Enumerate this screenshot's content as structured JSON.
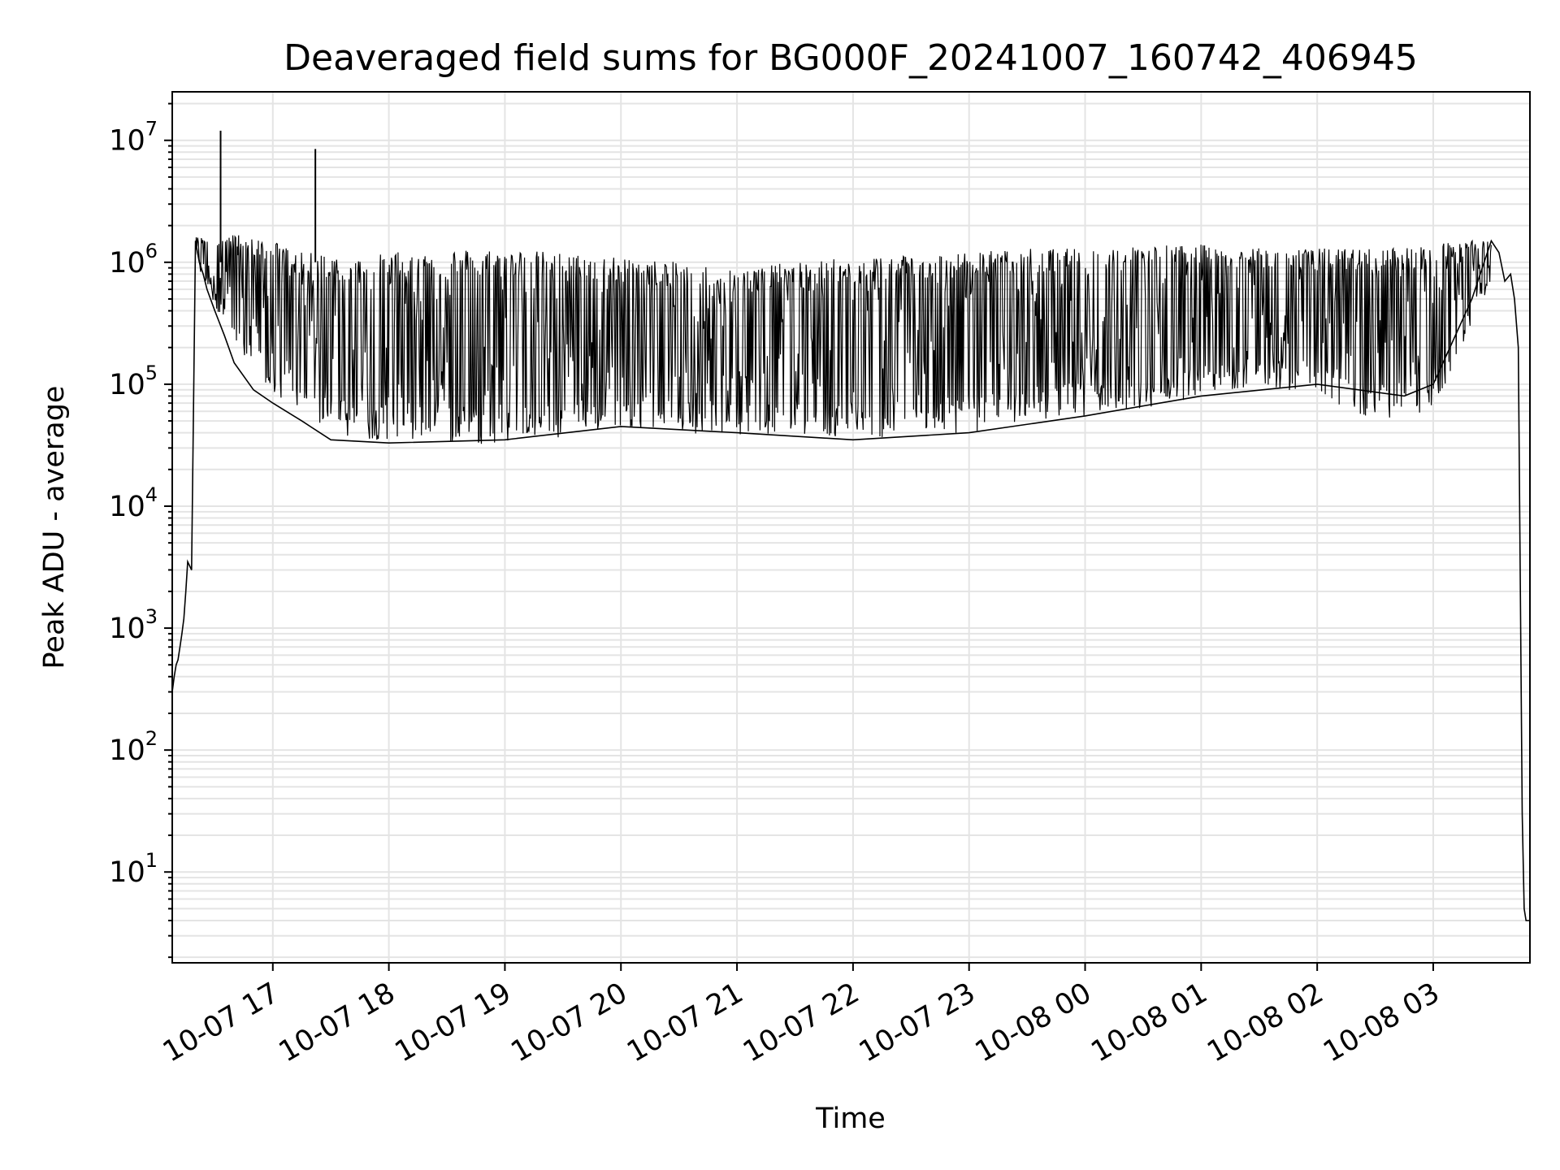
{
  "chart_data": {
    "type": "line",
    "title": "Deaveraged field sums for BG000F_20241007_160742_406945",
    "xlabel": "Time",
    "ylabel": "Peak ADU - average",
    "yscale": "log",
    "grid": true,
    "line_color": "#000000",
    "grid_color": "#e4e4e4",
    "xlim": [
      "2024-10-07 16:08",
      "2024-10-08 03:50"
    ],
    "ylim": [
      1.8,
      25000000
    ],
    "xticks": [
      {
        "t": "2024-10-07 17:00",
        "label": "10-07 17"
      },
      {
        "t": "2024-10-07 18:00",
        "label": "10-07 18"
      },
      {
        "t": "2024-10-07 19:00",
        "label": "10-07 19"
      },
      {
        "t": "2024-10-07 20:00",
        "label": "10-07 20"
      },
      {
        "t": "2024-10-07 21:00",
        "label": "10-07 21"
      },
      {
        "t": "2024-10-07 22:00",
        "label": "10-07 22"
      },
      {
        "t": "2024-10-07 23:00",
        "label": "10-07 23"
      },
      {
        "t": "2024-10-08 00:00",
        "label": "10-08 00"
      },
      {
        "t": "2024-10-08 01:00",
        "label": "10-08 01"
      },
      {
        "t": "2024-10-08 02:00",
        "label": "10-08 02"
      },
      {
        "t": "2024-10-08 03:00",
        "label": "10-08 03"
      }
    ],
    "yticks": [
      {
        "value": 10,
        "base": "10",
        "exp": "1"
      },
      {
        "value": 100,
        "base": "10",
        "exp": "2"
      },
      {
        "value": 1000,
        "base": "10",
        "exp": "3"
      },
      {
        "value": 10000,
        "base": "10",
        "exp": "4"
      },
      {
        "value": 100000,
        "base": "10",
        "exp": "5"
      },
      {
        "value": 1000000,
        "base": "10",
        "exp": "6"
      },
      {
        "value": 10000000,
        "base": "10",
        "exp": "7"
      }
    ],
    "series": [
      {
        "x": [
          "2024-10-07 16:08",
          "2024-10-07 16:09",
          "2024-10-07 16:10",
          "2024-10-07 16:11",
          "2024-10-07 16:12",
          "2024-10-07 16:13",
          "2024-10-07 16:14",
          "2024-10-07 16:15",
          "2024-10-07 16:16",
          "2024-10-07 16:18",
          "2024-10-07 16:20",
          "2024-10-07 16:22",
          "2024-10-07 16:24",
          "2024-10-07 16:26",
          "2024-10-07 16:30",
          "2024-10-07 16:35",
          "2024-10-07 16:40",
          "2024-10-07 16:50",
          "2024-10-07 17:00",
          "2024-10-07 17:15",
          "2024-10-07 17:30",
          "2024-10-07 18:00",
          "2024-10-07 19:00",
          "2024-10-07 20:00",
          "2024-10-07 21:00",
          "2024-10-07 22:00",
          "2024-10-07 23:00",
          "2024-10-08 00:00",
          "2024-10-08 01:00",
          "2024-10-08 02:00",
          "2024-10-08 02:45",
          "2024-10-08 03:00",
          "2024-10-08 03:20",
          "2024-10-08 03:30",
          "2024-10-08 03:34",
          "2024-10-08 03:37",
          "2024-10-08 03:40",
          "2024-10-08 03:42",
          "2024-10-08 03:44",
          "2024-10-08 03:46",
          "2024-10-08 03:47",
          "2024-10-08 03:48",
          "2024-10-08 03:50"
        ],
        "y": [
          300,
          400,
          500,
          550,
          700,
          900,
          1200,
          2000,
          3500,
          3000,
          1500000,
          1000000,
          800000,
          600000,
          400000,
          250000,
          150000,
          90000,
          70000,
          50000,
          35000,
          33000,
          35000,
          45000,
          40000,
          35000,
          40000,
          55000,
          80000,
          100000,
          80000,
          100000,
          500000,
          1500000,
          1200000,
          700000,
          800000,
          500000,
          200000,
          30,
          5,
          4,
          4
        ]
      }
    ],
    "spikes": [
      {
        "t": "2024-10-07 16:33",
        "y": 12000000
      },
      {
        "t": "2024-10-07 17:22",
        "y": 8500000
      }
    ],
    "envelope": {
      "x": [
        "2024-10-07 16:20",
        "2024-10-07 16:40",
        "2024-10-07 17:00",
        "2024-10-07 17:15",
        "2024-10-07 17:30",
        "2024-10-07 17:45",
        "2024-10-07 18:00",
        "2024-10-07 18:30",
        "2024-10-07 19:00",
        "2024-10-07 19:30",
        "2024-10-07 20:00",
        "2024-10-07 20:30",
        "2024-10-07 21:00",
        "2024-10-07 21:30",
        "2024-10-07 22:00",
        "2024-10-07 22:30",
        "2024-10-07 23:00",
        "2024-10-07 23:30",
        "2024-10-08 00:00",
        "2024-10-08 00:30",
        "2024-10-08 01:00",
        "2024-10-08 01:30",
        "2024-10-08 02:00",
        "2024-10-08 02:30",
        "2024-10-08 03:00",
        "2024-10-08 03:15",
        "2024-10-08 03:30"
      ],
      "lower": [
        1000000,
        200000,
        80000,
        60000,
        40000,
        35000,
        35000,
        33000,
        32000,
        35000,
        45000,
        40000,
        38000,
        40000,
        35000,
        38000,
        40000,
        50000,
        55000,
        60000,
        80000,
        100000,
        80000,
        50000,
        60000,
        200000,
        700000
      ],
      "upper": [
        1600000,
        1700000,
        1500000,
        1200000,
        1200000,
        1100000,
        1200000,
        1300000,
        1300000,
        1200000,
        1100000,
        1000000,
        900000,
        1000000,
        1100000,
        1200000,
        1200000,
        1300000,
        1300000,
        1400000,
        1400000,
        1300000,
        1300000,
        1300000,
        1400000,
        1500000,
        1500000
      ]
    }
  }
}
